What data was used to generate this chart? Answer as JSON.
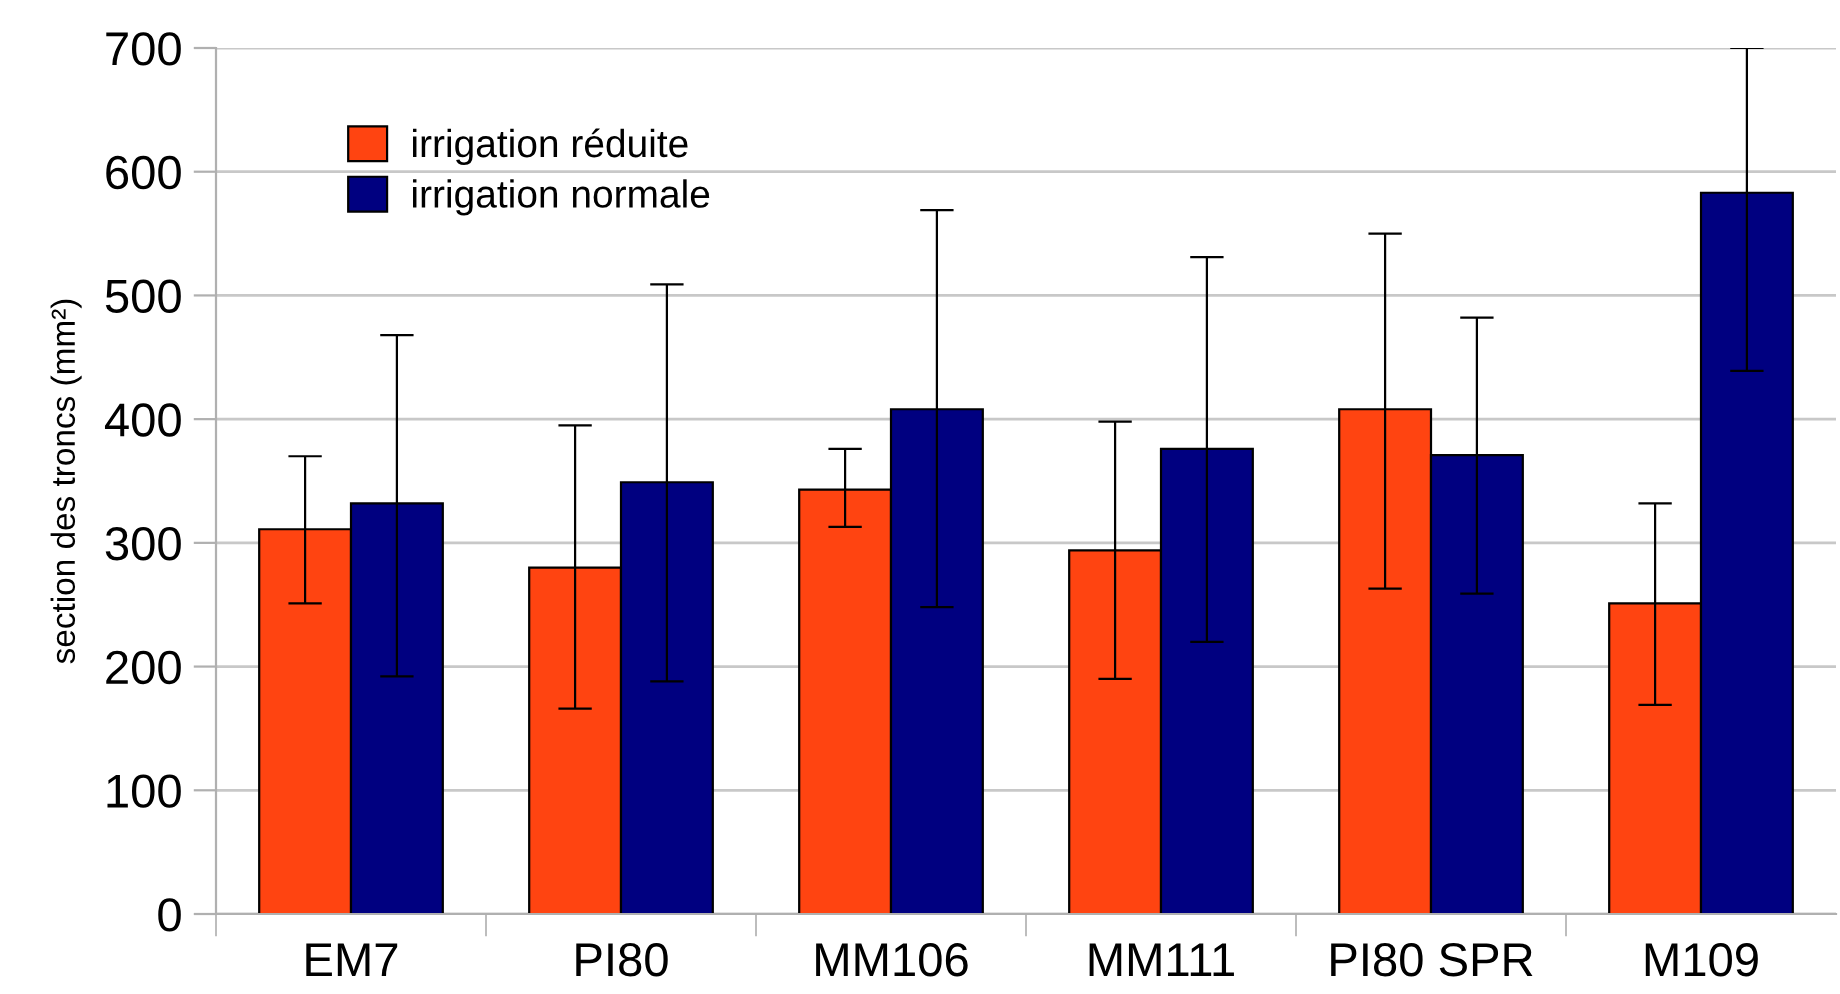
{
  "chart_data": {
    "type": "bar",
    "ylabel": "section des troncs (mm²)",
    "categories": [
      "EM7",
      "PI80",
      "MM106",
      "MM111",
      "PI80 SPR",
      "M109"
    ],
    "series": [
      {
        "name": "irrigation réduite",
        "color": "#ff4411",
        "values": [
          311,
          280,
          343,
          294,
          408,
          251
        ],
        "errors": [
          [
            251,
            370
          ],
          [
            166,
            395
          ],
          [
            313,
            376
          ],
          [
            190,
            398
          ],
          [
            263,
            550
          ],
          [
            169,
            332
          ]
        ]
      },
      {
        "name": "irrigation normale",
        "color": "#000080",
        "values": [
          332,
          349,
          408,
          376,
          371,
          583
        ],
        "errors": [
          [
            192,
            468
          ],
          [
            188,
            509
          ],
          [
            248,
            569
          ],
          [
            220,
            531
          ],
          [
            259,
            482
          ],
          [
            439,
            700
          ]
        ]
      }
    ],
    "ylim": [
      0,
      700
    ],
    "yticks": [
      0,
      100,
      200,
      300,
      400,
      500,
      600,
      700
    ],
    "grid": "y",
    "legend": "top left"
  }
}
